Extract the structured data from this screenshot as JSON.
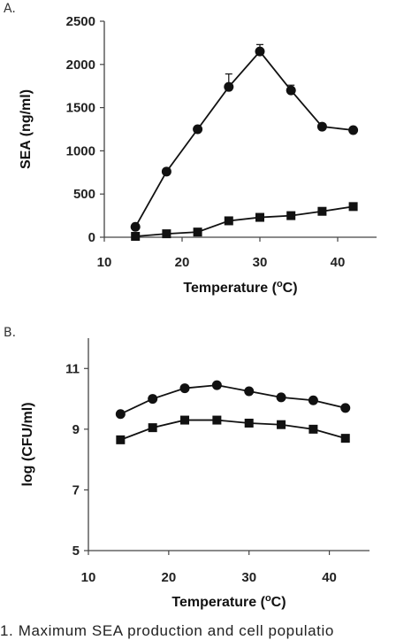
{
  "chart_data": [
    {
      "panel_label": "A.",
      "type": "line",
      "xlabel": "Temperature (",
      "xlabel_sup": "o",
      "xlabel_end": "C)",
      "ylabel": "SEA (ng/ml)",
      "xlim": [
        10,
        45
      ],
      "ylim": [
        0,
        2500
      ],
      "xticks": [
        10,
        20,
        30,
        40
      ],
      "yticks": [
        0,
        500,
        1000,
        1500,
        2000,
        2500
      ],
      "x": [
        14,
        18,
        22,
        26,
        30,
        34,
        38,
        42
      ],
      "series": [
        {
          "marker": "circle",
          "values": [
            120,
            760,
            1250,
            1740,
            2150,
            1700,
            1280,
            1240
          ],
          "error": [
            0,
            0,
            0,
            150,
            80,
            60,
            0,
            0
          ]
        },
        {
          "marker": "square",
          "values": [
            10,
            40,
            60,
            190,
            230,
            250,
            300,
            355
          ]
        }
      ]
    },
    {
      "panel_label": "B.",
      "type": "line",
      "xlabel": "Temperature (",
      "xlabel_sup": "o",
      "xlabel_end": "C)",
      "ylabel": "log (CFU/ml)",
      "xlim": [
        10,
        45
      ],
      "ylim": [
        5,
        12
      ],
      "xticks": [
        10,
        20,
        30,
        40
      ],
      "yticks": [
        5,
        7,
        9,
        11
      ],
      "x": [
        14,
        18,
        22,
        26,
        30,
        34,
        38,
        42
      ],
      "series": [
        {
          "marker": "circle",
          "values": [
            9.5,
            10.0,
            10.35,
            10.45,
            10.25,
            10.05,
            9.95,
            9.7
          ]
        },
        {
          "marker": "square",
          "values": [
            8.65,
            9.05,
            9.3,
            9.3,
            9.2,
            9.15,
            9.0,
            8.7
          ]
        }
      ]
    }
  ],
  "caption": "1. Maximum SEA production and cell populatio"
}
